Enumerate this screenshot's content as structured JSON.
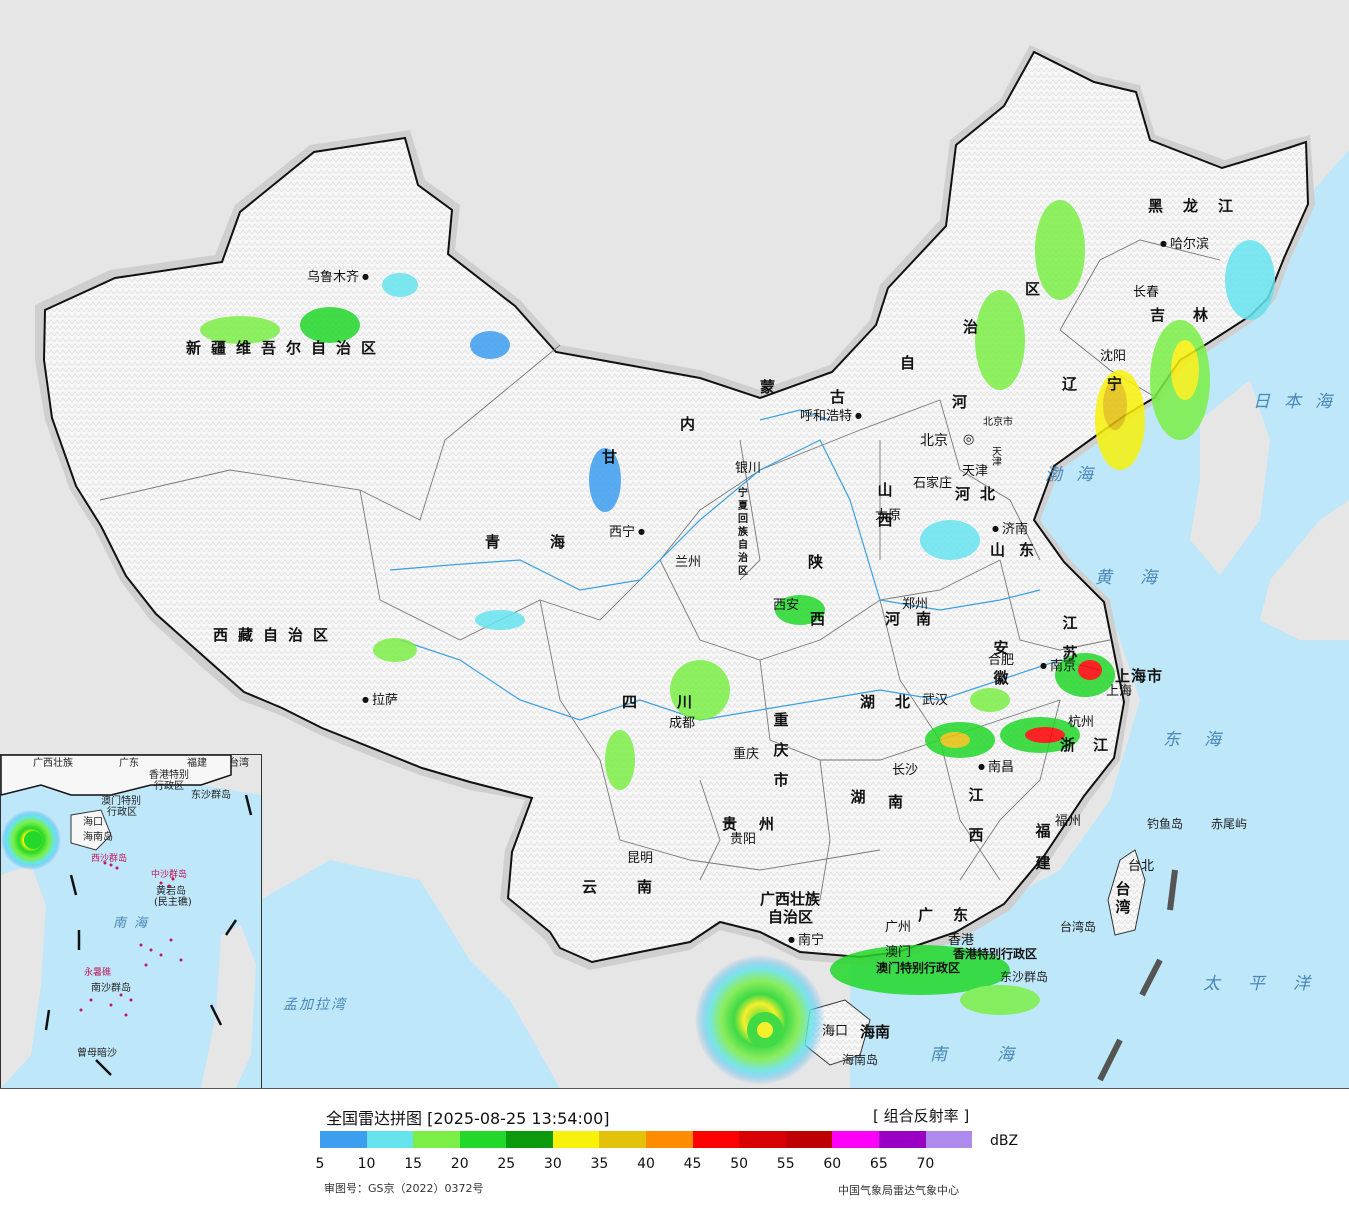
{
  "map": {
    "colors": {
      "sea": "#bfe7fa",
      "foreign_land": "#e6e6e6",
      "china_land": "#f7f7f7",
      "border": "#111111",
      "river": "#3aa0e0"
    },
    "provinces": {
      "xinjiang": "新疆维吾尔自治区",
      "xizang": "西藏自治区",
      "qinghai": "青海",
      "gansu": "甘",
      "neimenggu_a": "内",
      "neimenggu_b": "蒙",
      "neimenggu_c": "古",
      "neimenggu_d": "自",
      "neimenggu_e": "治",
      "neimenggu_f": "区",
      "heilongjiang": "黑龙江",
      "jilin": "吉林",
      "liaoning": "辽宁",
      "hebei": "河北",
      "hebei_a": "河",
      "shanxi": "山西",
      "shandong": "山东",
      "ningxia": "宁夏回族自治区",
      "shaanxi": "陕西",
      "henan": "河南",
      "jiangsu": "江苏",
      "anhui": "安徽",
      "hubei": "湖北",
      "sichuan": "四川",
      "chongqing": "重庆市",
      "hunan": "湖南",
      "jiangxi": "江西",
      "zhejiang": "浙江",
      "fujian": "福建",
      "guizhou": "贵州",
      "yunnan": "云南",
      "guangxi_a": "广西壮族",
      "guangxi_b": "自治区",
      "guangdong": "广东",
      "taiwan": "台湾",
      "hainan": "海南",
      "shanghai": "上海市",
      "tianjin": "天津",
      "beijing_small": "北京市",
      "hk": "香港特别行政区",
      "macau": "澳门特别行政区",
      "tianjin_small": "天津"
    },
    "cities": {
      "urumqi": "乌鲁木齐",
      "lhasa": "拉萨",
      "xining": "西宁",
      "lanzhou": "兰州",
      "yinchuan": "银川",
      "huhehaote": "呼和浩特",
      "beijing": "北京",
      "tianjin": "天津",
      "shijiazhuang": "石家庄",
      "taiyuan": "太原",
      "jinan": "济南",
      "zhengzhou": "郑州",
      "xian": "西安",
      "chengdu": "成都",
      "chongqing": "重庆",
      "wuhan": "武汉",
      "hefei": "合肥",
      "nanjing": "南京",
      "shanghai": "上海",
      "hangzhou": "杭州",
      "nanchang": "南昌",
      "changsha": "长沙",
      "guiyang": "贵阳",
      "kunming": "昆明",
      "nanning": "南宁",
      "guangzhou": "广州",
      "hongkong": "香港",
      "macau": "澳门",
      "haikou": "海口",
      "fuzhou": "福州",
      "taipei": "台北",
      "shenyang": "沈阳",
      "changchun": "长春",
      "harbin": "哈尔滨"
    },
    "seas": {
      "japan": "日本海",
      "bohai": "渤海",
      "yellow": "黄海",
      "east": "东海",
      "south": "南海",
      "pacific": "太平洋",
      "bengal": "孟加拉湾"
    },
    "islands": {
      "diaoyu": "钓鱼岛",
      "chiwei": "赤尾屿",
      "dongsha": "东沙群岛",
      "hainan_island": "海南岛",
      "taiwan_island": "台湾岛"
    }
  },
  "inset": {
    "labels": {
      "guangxi": "广西壮族",
      "guangdong": "广东",
      "fujian": "福建",
      "taiwan": "台湾",
      "hk": "香港特别",
      "hk2": "行政区",
      "macau": "澳门特别",
      "macau2": "行政区",
      "dongsha": "东沙群岛",
      "haikou": "海口",
      "hainan": "海南岛",
      "xisha": "西沙群岛",
      "zhongsha": "中沙群岛",
      "huangyan": "黄岩岛",
      "huangyan2": "(民主礁)",
      "nanhai": "南海",
      "yongshu": "永暑礁",
      "nansha": "南沙群岛",
      "zengmu": "曾母暗沙"
    }
  },
  "legend": {
    "title": "全国雷达拼图 [2025-08-25 13:54:00]",
    "product": "[ 组合反射率 ]",
    "unit": "dBZ",
    "scale_colors": [
      "#3d9ef0",
      "#66e4ee",
      "#7bef46",
      "#22d82a",
      "#0b9a0b",
      "#f8f20a",
      "#e4c10a",
      "#fe8c00",
      "#fe0000",
      "#d80000",
      "#be0000",
      "#fd00f8",
      "#9900c4",
      "#ae8aec"
    ],
    "scale_ticks": [
      "5",
      "10",
      "15",
      "20",
      "25",
      "30",
      "35",
      "40",
      "45",
      "50",
      "55",
      "60",
      "65",
      "70"
    ],
    "approval": "审图号：GS京（2022）0372号",
    "agency": "中国气象局雷达气象中心"
  }
}
